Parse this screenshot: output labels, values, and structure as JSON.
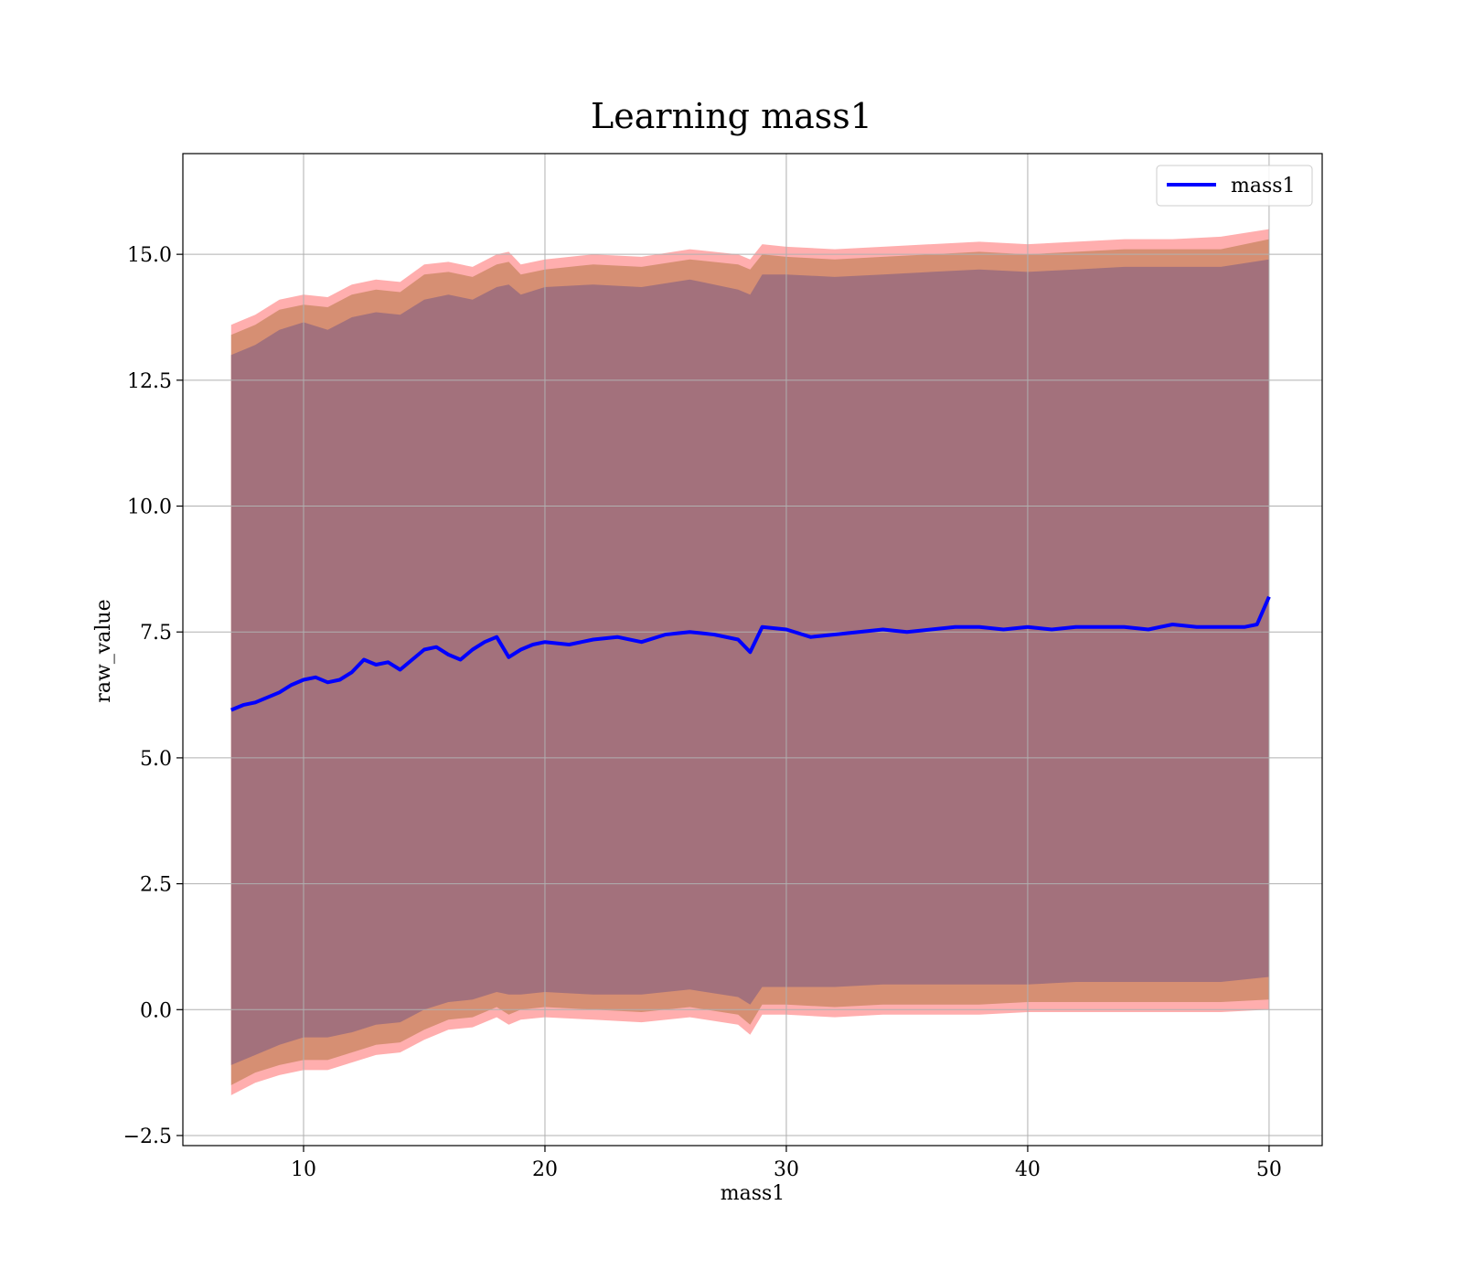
{
  "chart_data": {
    "type": "line",
    "title": "Learning mass1",
    "xlabel": "mass1",
    "ylabel": "raw_value",
    "xlim": [
      5.0,
      52.2
    ],
    "ylim": [
      -2.7,
      17.0
    ],
    "x_ticks": [
      10,
      20,
      30,
      40,
      50
    ],
    "x_tick_labels": [
      "10",
      "20",
      "30",
      "40",
      "50"
    ],
    "y_ticks": [
      -2.5,
      0.0,
      2.5,
      5.0,
      7.5,
      10.0,
      12.5,
      15.0
    ],
    "y_tick_labels": [
      "−2.5",
      "0.0",
      "2.5",
      "5.0",
      "7.5",
      "10.0",
      "12.5",
      "15.0"
    ],
    "grid": true,
    "legend_position": "top-right",
    "colors": {
      "line": "#0000ff",
      "band_outer": "#ff6b6b",
      "band_middle": "#c8845f",
      "band_inner": "#a0707c"
    },
    "series": [
      {
        "name": "mass1",
        "x": [
          7.0,
          7.5,
          8.0,
          8.5,
          9.0,
          9.5,
          10.0,
          10.5,
          11.0,
          11.5,
          12.0,
          12.5,
          13.0,
          13.5,
          14.0,
          14.5,
          15.0,
          15.5,
          16.0,
          16.5,
          17.0,
          17.5,
          18.0,
          18.5,
          19.0,
          19.5,
          20.0,
          21.0,
          22.0,
          23.0,
          24.0,
          25.0,
          26.0,
          27.0,
          28.0,
          28.5,
          29.0,
          30.0,
          31.0,
          32.0,
          33.0,
          34.0,
          35.0,
          36.0,
          37.0,
          38.0,
          39.0,
          40.0,
          41.0,
          42.0,
          43.0,
          44.0,
          45.0,
          46.0,
          47.0,
          48.0,
          49.0,
          49.5,
          50.0
        ],
        "y": [
          5.95,
          6.05,
          6.1,
          6.2,
          6.3,
          6.45,
          6.55,
          6.6,
          6.5,
          6.55,
          6.7,
          6.95,
          6.85,
          6.9,
          6.75,
          6.95,
          7.15,
          7.2,
          7.05,
          6.95,
          7.15,
          7.3,
          7.4,
          7.0,
          7.15,
          7.25,
          7.3,
          7.25,
          7.35,
          7.4,
          7.3,
          7.45,
          7.5,
          7.45,
          7.35,
          7.1,
          7.6,
          7.55,
          7.4,
          7.45,
          7.5,
          7.55,
          7.5,
          7.55,
          7.6,
          7.6,
          7.55,
          7.6,
          7.55,
          7.6,
          7.6,
          7.6,
          7.55,
          7.65,
          7.6,
          7.6,
          7.6,
          7.65,
          8.2
        ]
      }
    ],
    "bands": [
      {
        "x": [
          7.0,
          8.0,
          9.0,
          10.0,
          11.0,
          12.0,
          13.0,
          14.0,
          15.0,
          16.0,
          17.0,
          18.0,
          18.5,
          19.0,
          20.0,
          22.0,
          24.0,
          26.0,
          28.0,
          28.5,
          29.0,
          30.0,
          32.0,
          34.0,
          36.0,
          38.0,
          40.0,
          42.0,
          44.0,
          46.0,
          48.0,
          50.0
        ],
        "upper": [
          13.6,
          13.8,
          14.1,
          14.2,
          14.15,
          14.4,
          14.5,
          14.45,
          14.8,
          14.85,
          14.75,
          15.0,
          15.05,
          14.8,
          14.9,
          15.0,
          14.95,
          15.1,
          15.0,
          14.9,
          15.2,
          15.15,
          15.1,
          15.15,
          15.2,
          15.25,
          15.2,
          15.25,
          15.3,
          15.3,
          15.35,
          15.5
        ],
        "lower": [
          -1.7,
          -1.45,
          -1.3,
          -1.2,
          -1.2,
          -1.05,
          -0.9,
          -0.85,
          -0.6,
          -0.4,
          -0.35,
          -0.15,
          -0.3,
          -0.2,
          -0.15,
          -0.2,
          -0.25,
          -0.15,
          -0.3,
          -0.5,
          -0.1,
          -0.1,
          -0.15,
          -0.1,
          -0.1,
          -0.1,
          -0.05,
          -0.05,
          -0.05,
          -0.05,
          -0.05,
          0.0
        ]
      },
      {
        "x": [
          7.0,
          8.0,
          9.0,
          10.0,
          11.0,
          12.0,
          13.0,
          14.0,
          15.0,
          16.0,
          17.0,
          18.0,
          18.5,
          19.0,
          20.0,
          22.0,
          24.0,
          26.0,
          28.0,
          28.5,
          29.0,
          30.0,
          32.0,
          34.0,
          36.0,
          38.0,
          40.0,
          42.0,
          44.0,
          46.0,
          48.0,
          50.0
        ],
        "upper": [
          13.4,
          13.6,
          13.9,
          14.0,
          13.95,
          14.2,
          14.3,
          14.25,
          14.6,
          14.65,
          14.55,
          14.8,
          14.85,
          14.6,
          14.7,
          14.8,
          14.75,
          14.9,
          14.8,
          14.7,
          15.0,
          14.95,
          14.9,
          14.95,
          15.0,
          15.05,
          15.0,
          15.05,
          15.1,
          15.1,
          15.1,
          15.3
        ],
        "lower": [
          -1.5,
          -1.25,
          -1.1,
          -1.0,
          -1.0,
          -0.85,
          -0.7,
          -0.65,
          -0.4,
          -0.2,
          -0.15,
          0.05,
          -0.1,
          0.0,
          0.05,
          0.0,
          -0.05,
          0.05,
          -0.1,
          -0.3,
          0.1,
          0.1,
          0.05,
          0.1,
          0.1,
          0.1,
          0.15,
          0.15,
          0.15,
          0.15,
          0.15,
          0.2
        ]
      },
      {
        "x": [
          7.0,
          8.0,
          9.0,
          10.0,
          11.0,
          12.0,
          13.0,
          14.0,
          15.0,
          16.0,
          17.0,
          18.0,
          18.5,
          19.0,
          20.0,
          22.0,
          24.0,
          26.0,
          28.0,
          28.5,
          29.0,
          30.0,
          32.0,
          34.0,
          36.0,
          38.0,
          40.0,
          42.0,
          44.0,
          46.0,
          48.0,
          50.0
        ],
        "upper": [
          13.0,
          13.2,
          13.5,
          13.65,
          13.5,
          13.75,
          13.85,
          13.8,
          14.1,
          14.2,
          14.1,
          14.35,
          14.4,
          14.2,
          14.35,
          14.4,
          14.35,
          14.5,
          14.3,
          14.2,
          14.6,
          14.6,
          14.55,
          14.6,
          14.65,
          14.7,
          14.65,
          14.7,
          14.75,
          14.75,
          14.75,
          14.9
        ],
        "lower": [
          -1.1,
          -0.9,
          -0.7,
          -0.55,
          -0.55,
          -0.45,
          -0.3,
          -0.25,
          0.0,
          0.15,
          0.2,
          0.35,
          0.3,
          0.3,
          0.35,
          0.3,
          0.3,
          0.4,
          0.25,
          0.1,
          0.45,
          0.45,
          0.45,
          0.5,
          0.5,
          0.5,
          0.5,
          0.55,
          0.55,
          0.55,
          0.55,
          0.65
        ]
      }
    ]
  }
}
